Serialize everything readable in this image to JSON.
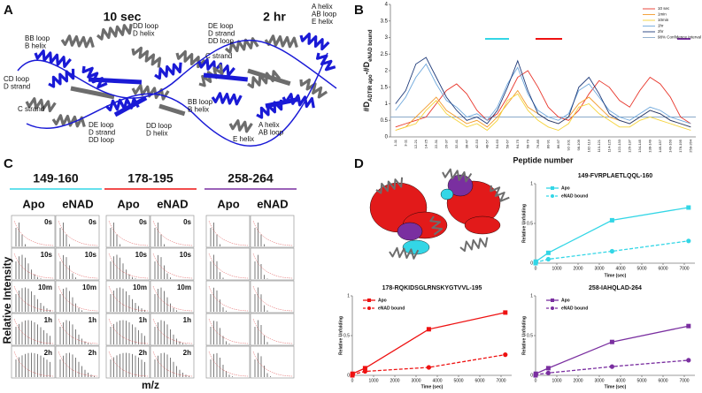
{
  "panel_letters": [
    "A",
    "B",
    "C",
    "D"
  ],
  "panel_a": {
    "time_labels": [
      "10 sec",
      "2 hr"
    ],
    "labels": [
      [
        "BB loop",
        "B helix"
      ],
      [
        "DD loop",
        "D helix"
      ],
      [
        "DE loop",
        "D strand",
        "DD loop"
      ],
      [
        "C strand"
      ],
      [
        "CD loop",
        "D strand"
      ],
      [
        "C strand"
      ],
      [
        "DE loop",
        "D strand",
        "DD loop"
      ],
      [
        "DD loop",
        "D helix"
      ],
      [
        "BB loop",
        "B helix"
      ],
      [
        "E helix"
      ],
      [
        "A helix",
        "AB loop"
      ],
      [
        "A helix",
        "AB loop",
        "E helix"
      ]
    ]
  },
  "panel_c": {
    "ylabel": "Relative Intensity",
    "xlabel": "m/z",
    "groups": [
      {
        "title": "149-160",
        "color": "#33d6e6",
        "columns": [
          "Apo",
          "eNAD"
        ],
        "times": [
          "0s",
          "10s",
          "10m",
          "1h",
          "2h"
        ]
      },
      {
        "title": "178-195",
        "color": "#ee1111",
        "columns": [
          "Apo",
          "eNAD"
        ],
        "times": [
          "0s",
          "10s",
          "10m",
          "1h",
          "2h"
        ]
      },
      {
        "title": "258-264",
        "color": "#7a2fa0",
        "columns": [
          "Apo",
          "eNAD"
        ]
      }
    ]
  },
  "chart_data": [
    {
      "type": "line",
      "xlabel": "Peptide number",
      "ylabel_parts": [
        "#D",
        "ADTIR apo",
        "-#D",
        "eNAD bound"
      ],
      "ylim": [
        0,
        4
      ],
      "yticks": [
        0,
        0.5,
        1,
        1.5,
        2,
        2.5,
        3,
        3.5,
        4
      ],
      "legend": "upper right",
      "categories": [
        "1-11",
        "3-11",
        "12-21",
        "14-25",
        "22-31",
        "26-37",
        "32-41",
        "38-47",
        "42-53",
        "48-57",
        "54-63",
        "58-67",
        "64-75",
        "68-79",
        "76-85",
        "80-91",
        "86-97",
        "92-101",
        "98-109",
        "102-113",
        "110-121",
        "114-125",
        "122-133",
        "126-137",
        "134-145",
        "138-149",
        "146-157",
        "149-160",
        "178-195",
        "258-264"
      ],
      "series": [
        {
          "name": "10 sec",
          "color": "#e8352a",
          "values": [
            0.3,
            0.4,
            0.5,
            0.6,
            1.0,
            1.4,
            1.6,
            1.3,
            0.8,
            0.5,
            0.7,
            1.2,
            1.8,
            2.0,
            1.5,
            0.9,
            0.6,
            0.5,
            0.8,
            1.3,
            1.7,
            1.5,
            1.1,
            0.9,
            1.4,
            1.8,
            1.6,
            1.2,
            0.6,
            0.4
          ]
        },
        {
          "name": "1min",
          "color": "#f39a2b",
          "values": [
            0.2,
            0.3,
            0.6,
            0.9,
            1.2,
            0.8,
            0.6,
            0.4,
            0.5,
            0.3,
            0.6,
            1.0,
            1.4,
            0.9,
            0.7,
            0.5,
            0.4,
            0.6,
            1.0,
            1.2,
            0.9,
            0.6,
            0.5,
            0.4,
            0.6,
            0.8,
            0.7,
            0.5,
            0.4,
            0.3
          ]
        },
        {
          "name": "10min",
          "color": "#f5d33a",
          "values": [
            0.2,
            0.3,
            0.4,
            0.8,
            1.1,
            0.7,
            0.5,
            0.3,
            0.4,
            0.2,
            0.5,
            1.1,
            1.3,
            0.8,
            0.5,
            0.3,
            0.2,
            0.4,
            0.9,
            1.0,
            0.7,
            0.5,
            0.3,
            0.3,
            0.5,
            0.6,
            0.5,
            0.4,
            0.3,
            0.2
          ]
        },
        {
          "name": "1hr",
          "color": "#6fa8dc",
          "values": [
            0.8,
            1.2,
            1.8,
            2.2,
            1.6,
            1.1,
            0.9,
            0.6,
            0.7,
            0.5,
            0.9,
            1.6,
            2.1,
            1.3,
            0.8,
            0.6,
            0.5,
            0.7,
            1.4,
            1.6,
            1.2,
            0.8,
            0.6,
            0.5,
            0.7,
            0.9,
            0.8,
            0.6,
            0.5,
            0.4
          ]
        },
        {
          "name": "2hr",
          "color": "#1f3b7a",
          "values": [
            1.0,
            1.4,
            2.2,
            2.4,
            1.8,
            1.2,
            0.8,
            0.5,
            0.6,
            0.4,
            0.8,
            1.5,
            2.3,
            1.4,
            0.7,
            0.5,
            0.4,
            0.6,
            1.5,
            1.8,
            1.3,
            0.7,
            0.5,
            0.4,
            0.6,
            0.8,
            0.7,
            0.5,
            0.4,
            0.3
          ]
        }
      ],
      "confidence_interval": {
        "name": "98% Confidence Interval",
        "value": 0.6,
        "color": "#8aa9c9"
      }
    },
    {
      "type": "line",
      "title": "149-FVRPLAETLQQL-160",
      "title_color": "#33d6e6",
      "xlabel": "Time (sec)",
      "ylabel": "Relative Unfolding",
      "legend": "upper left",
      "x": [
        0,
        10,
        600,
        3600,
        7200
      ],
      "xlim": [
        0,
        7500
      ],
      "xticks": [
        0,
        1000,
        2000,
        3000,
        4000,
        5000,
        6000,
        7000
      ],
      "ylim": [
        0,
        1
      ],
      "yticks": [
        0,
        0.5,
        1
      ],
      "series": [
        {
          "name": "Apo",
          "color": "#33d6e6",
          "dash": false,
          "marker": "square",
          "values": [
            0,
            0.02,
            0.13,
            0.54,
            0.7
          ]
        },
        {
          "name": "eNAD bound",
          "color": "#33d6e6",
          "dash": true,
          "marker": "circle",
          "values": [
            0,
            0.01,
            0.05,
            0.15,
            0.28
          ]
        }
      ]
    },
    {
      "type": "line",
      "title": "178-RQKIDSGLRNSKYGTVVL-195",
      "title_color": "#ee1111",
      "xlabel": "Time (sec)",
      "ylabel": "Relative Unfolding",
      "legend": "upper left",
      "x": [
        0,
        10,
        600,
        3600,
        7200
      ],
      "xlim": [
        0,
        7500
      ],
      "xticks": [
        0,
        1000,
        2000,
        3000,
        4000,
        5000,
        6000,
        7000
      ],
      "ylim": [
        0,
        1
      ],
      "yticks": [
        0,
        0.5,
        1
      ],
      "series": [
        {
          "name": "Apo",
          "color": "#ee1111",
          "dash": false,
          "marker": "square",
          "values": [
            0,
            0.02,
            0.09,
            0.58,
            0.79
          ]
        },
        {
          "name": "eNAD bound",
          "color": "#ee1111",
          "dash": true,
          "marker": "circle",
          "values": [
            0,
            0.01,
            0.05,
            0.1,
            0.26
          ]
        }
      ]
    },
    {
      "type": "line",
      "title": "258-IAHQLAD-264",
      "title_color": "#7a2fa0",
      "xlabel": "Time (sec)",
      "ylabel": "Relative Unfolding",
      "legend": "upper left",
      "x": [
        0,
        10,
        600,
        3600,
        7200
      ],
      "xlim": [
        0,
        7500
      ],
      "xticks": [
        0,
        1000,
        2000,
        3000,
        4000,
        5000,
        6000,
        7000
      ],
      "ylim": [
        0,
        1
      ],
      "yticks": [
        0,
        0.5,
        1
      ],
      "series": [
        {
          "name": "Apo",
          "color": "#7a2fa0",
          "dash": false,
          "marker": "square",
          "values": [
            0,
            0.02,
            0.09,
            0.42,
            0.62
          ]
        },
        {
          "name": "eNAD bound",
          "color": "#7a2fa0",
          "dash": true,
          "marker": "circle",
          "values": [
            0,
            0.01,
            0.03,
            0.11,
            0.19
          ]
        }
      ]
    }
  ]
}
